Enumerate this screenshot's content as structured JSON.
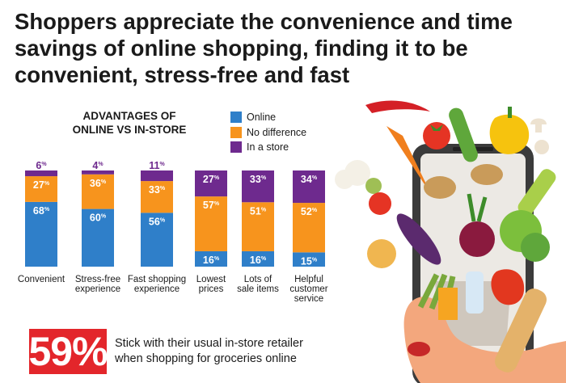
{
  "headline": {
    "line1": "Shoppers appreciate the convenience and time",
    "line2": "savings of online shopping, finding it to be",
    "line3": "convenient, stress-free and fast"
  },
  "chart_data": {
    "type": "bar",
    "stacked": true,
    "normalized": true,
    "title": "ADVANTAGES OF ONLINE VS IN-STORE",
    "title_lines": [
      "ADVANTAGES OF",
      "ONLINE VS IN-STORE"
    ],
    "categories": [
      [
        "Convenient"
      ],
      [
        "Stress-free",
        "experience"
      ],
      [
        "Fast shopping",
        "experience"
      ],
      [
        "Lowest",
        "prices"
      ],
      [
        "Lots of",
        "sale items"
      ],
      [
        "Helpful",
        "customer",
        "service"
      ]
    ],
    "series": [
      {
        "name": "Online",
        "color": "#2f7fc9",
        "values": [
          68,
          60,
          56,
          16,
          16,
          15
        ]
      },
      {
        "name": "No difference",
        "color": "#f7941d",
        "values": [
          27,
          36,
          33,
          57,
          51,
          52
        ]
      },
      {
        "name": "In a store",
        "color": "#6e2a8e",
        "values": [
          6,
          4,
          11,
          27,
          33,
          34
        ]
      }
    ],
    "value_suffix": "%",
    "legend_position": "top-right",
    "grid": false
  },
  "stat": {
    "value": "59%",
    "line1": "Stick with their usual in-store retailer",
    "line2": "when shopping for groceries online"
  },
  "colors": {
    "accent_red": "#e3262b",
    "online": "#2f7fc9",
    "no_difference": "#f7941d",
    "in_store": "#6e2a8e"
  },
  "illustration": {
    "icon": "smartphone-with-vegetables-icon"
  }
}
